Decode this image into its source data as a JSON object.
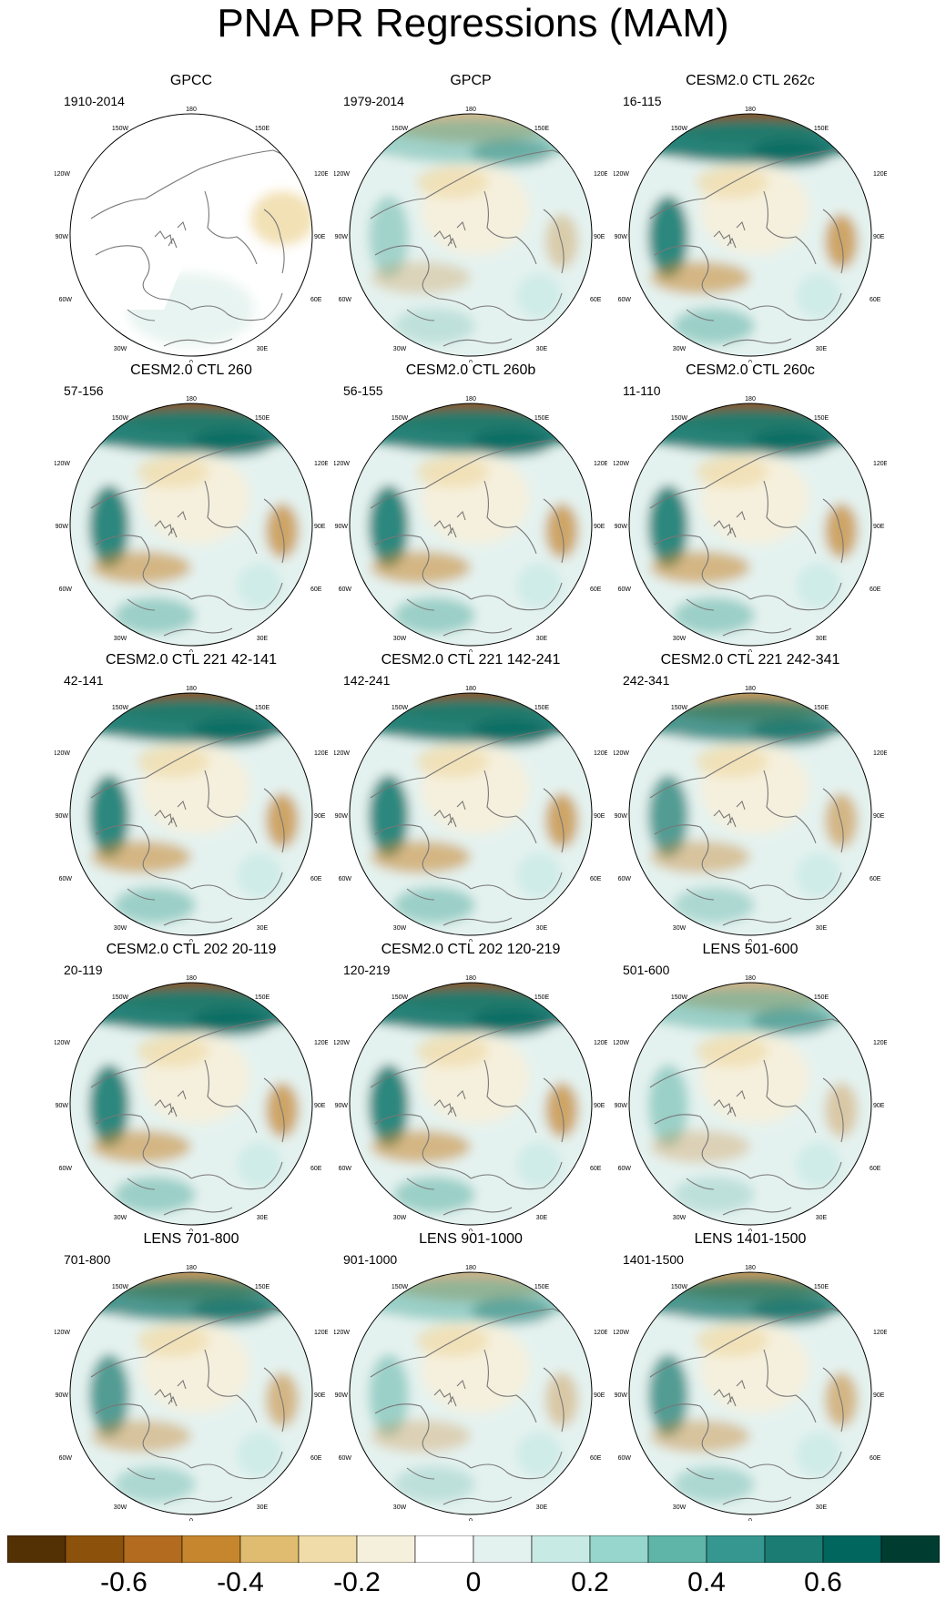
{
  "title": "PNA PR Regressions (MAM)",
  "degree_labels": {
    "top": "180",
    "bottom": "0",
    "upper_left": "150W",
    "upper_right": "150E",
    "mid_left_upper": "120W",
    "mid_right_upper": "120E",
    "left": "90W",
    "right": "90E",
    "mid_left_lower": "60W",
    "mid_right_lower": "60E",
    "lower_left": "30W",
    "lower_right": "30E"
  },
  "panels": [
    {
      "title": "GPCC",
      "period": "1910-2014",
      "style": "obs_gpcc"
    },
    {
      "title": "GPCP",
      "period": "1979-2014",
      "style": "obs_gpcp"
    },
    {
      "title": "CESM2.0 CTL 262c",
      "period": "16-115",
      "style": "model_strong"
    },
    {
      "title": "CESM2.0 CTL 260",
      "period": "57-156",
      "style": "model_strong"
    },
    {
      "title": "CESM2.0 CTL 260b",
      "period": "56-155",
      "style": "model_strong"
    },
    {
      "title": "CESM2.0 CTL 260c",
      "period": "11-110",
      "style": "model_strong"
    },
    {
      "title": "CESM2.0 CTL 221 42-141",
      "period": "42-141",
      "style": "model_strong"
    },
    {
      "title": "CESM2.0 CTL 221 142-241",
      "period": "142-241",
      "style": "model_strong"
    },
    {
      "title": "CESM2.0 CTL 221 242-341",
      "period": "242-341",
      "style": "model_medium"
    },
    {
      "title": "CESM2.0 CTL 202 20-119",
      "period": "20-119",
      "style": "model_strong"
    },
    {
      "title": "CESM2.0 CTL 202 120-219",
      "period": "120-219",
      "style": "model_strong"
    },
    {
      "title": "LENS 501-600",
      "period": "501-600",
      "style": "model_weak"
    },
    {
      "title": "LENS 701-800",
      "period": "701-800",
      "style": "model_medium"
    },
    {
      "title": "LENS 901-1000",
      "period": "901-1000",
      "style": "model_weak"
    },
    {
      "title": "LENS 1401-1500",
      "period": "1401-1500",
      "style": "model_medium"
    }
  ],
  "colorbar": {
    "colors": [
      "#543005",
      "#8c510a",
      "#b26b1f",
      "#c6862e",
      "#dfbc6f",
      "#f0dca8",
      "#f5f0dc",
      "#ffffff",
      "#e4f2ef",
      "#c7eae5",
      "#96d6cc",
      "#5fb5a8",
      "#35978f",
      "#1a7c72",
      "#01665e",
      "#003c30"
    ],
    "tick_labels": [
      "-0.6",
      "-0.4",
      "-0.2",
      "0",
      "0.2",
      "0.4",
      "0.6"
    ]
  }
}
